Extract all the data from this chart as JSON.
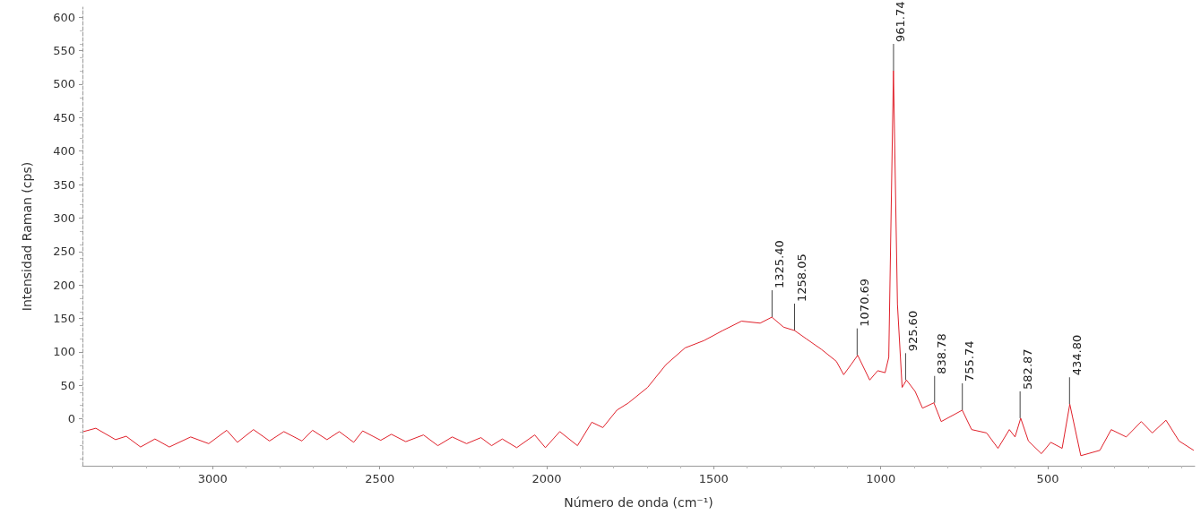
{
  "chart_data": {
    "type": "line",
    "xlabel": "Número de onda (cm⁻¹)",
    "ylabel": "Intensidad Raman (cps)",
    "xlim": [
      3390,
      60
    ],
    "xticks": [
      3000,
      2500,
      2000,
      1500,
      1000,
      500
    ],
    "ylim": [
      -70,
      615
    ],
    "yticks": [
      0,
      50,
      100,
      150,
      200,
      250,
      300,
      350,
      400,
      450,
      500,
      550,
      600
    ],
    "marker": "none",
    "line_style": "solid",
    "series": [
      {
        "color": "#e0202a",
        "x": [
          3387,
          3350,
          3291,
          3259,
          3216,
          3173,
          3130,
          3066,
          3012,
          2958,
          2926,
          2878,
          2830,
          2787,
          2733,
          2701,
          2658,
          2621,
          2578,
          2551,
          2497,
          2465,
          2422,
          2369,
          2326,
          2283,
          2240,
          2197,
          2165,
          2133,
          2090,
          2036,
          2004,
          1961,
          1908,
          1865,
          1832,
          1790,
          1755,
          1698,
          1643,
          1586,
          1529,
          1473,
          1417,
          1361,
          1326,
          1291,
          1258,
          1224,
          1178,
          1133,
          1111,
          1089,
          1069,
          1033,
          1009,
          987,
          976,
          962,
          950,
          936,
          923,
          897,
          875,
          841,
          819,
          756,
          728,
          683,
          649,
          615,
          598,
          581,
          558,
          519,
          491,
          457,
          434,
          401,
          344,
          310,
          265,
          220,
          187,
          146,
          107,
          63
        ],
        "values": [
          -19,
          -14,
          -31,
          -26,
          -42,
          -30,
          -42,
          -27,
          -37,
          -17,
          -35,
          -16,
          -33,
          -19,
          -33,
          -17,
          -31,
          -19,
          -35,
          -18,
          -32,
          -23,
          -34,
          -24,
          -40,
          -27,
          -37,
          -28,
          -40,
          -30,
          -43,
          -24,
          -43,
          -19,
          -40,
          -5,
          -13,
          13,
          24,
          47,
          81,
          106,
          117,
          132,
          146,
          143,
          152,
          137,
          132,
          120,
          104,
          86,
          66,
          81,
          95,
          58,
          72,
          69,
          92,
          520,
          171,
          47,
          58,
          41,
          16,
          24,
          -4,
          13,
          -16,
          -21,
          -44,
          -16,
          -27,
          1,
          -33,
          -52,
          -35,
          -44,
          22,
          -55,
          -47,
          -16,
          -27,
          -4,
          -21,
          -2,
          -33,
          -47
        ]
      }
    ],
    "annotations": [
      {
        "text": "1325.40",
        "x": 1325.4,
        "y": 152
      },
      {
        "text": "1258.05",
        "x": 1258.05,
        "y": 132
      },
      {
        "text": "1070.69",
        "x": 1070.69,
        "y": 95
      },
      {
        "text": "961.74",
        "x": 961.74,
        "y": 520
      },
      {
        "text": "925.60",
        "x": 925.6,
        "y": 58
      },
      {
        "text": "838.78",
        "x": 838.78,
        "y": 24
      },
      {
        "text": "755.74",
        "x": 755.74,
        "y": 13
      },
      {
        "text": "582.87",
        "x": 582.87,
        "y": 1
      },
      {
        "text": "434.80",
        "x": 434.8,
        "y": 22
      }
    ]
  }
}
